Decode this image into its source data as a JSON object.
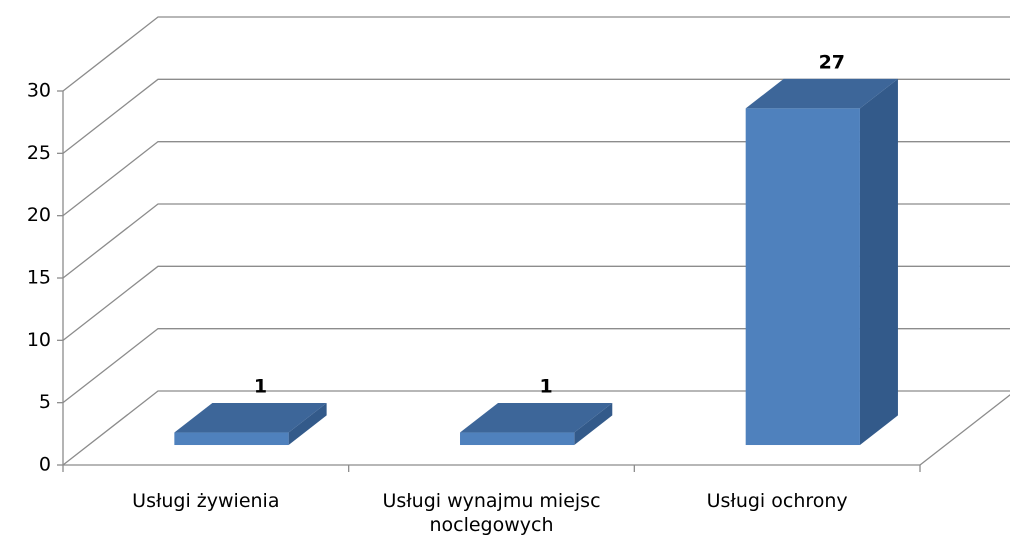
{
  "chart_data": {
    "type": "bar3d",
    "categories": [
      "Usługi żywienia",
      "Usługi wynajmu miejsc noclegowych",
      "Usługi ochrony"
    ],
    "values": [
      1,
      1,
      27
    ],
    "color": "#4f81bd",
    "ylim": [
      0,
      30
    ],
    "yticks": [
      0,
      5,
      10,
      15,
      20,
      25,
      30
    ],
    "grid": true
  }
}
